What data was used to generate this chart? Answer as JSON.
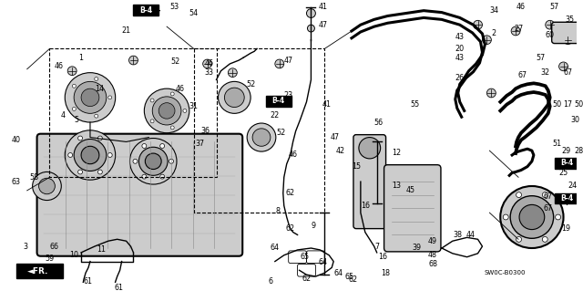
{
  "fig_width": 6.4,
  "fig_height": 3.19,
  "dpi": 100,
  "background_color": "#ffffff",
  "image_data": ""
}
